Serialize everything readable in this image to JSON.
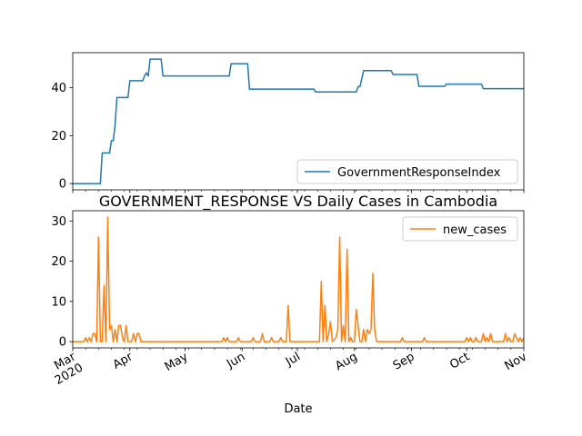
{
  "chart_data": [
    {
      "type": "line",
      "title": "",
      "xlabel": "",
      "ylabel": "",
      "ylim": [
        -2.6,
        54.6
      ],
      "yticks": [
        0,
        20,
        40
      ],
      "legend_position": "lower-right",
      "grid": false,
      "series": [
        {
          "name": "GovernmentResponseIndex",
          "color": "#1f77b4",
          "points": [
            [
              "2020-03-01",
              0
            ],
            [
              "2020-03-16",
              0
            ],
            [
              "2020-03-17",
              12.8
            ],
            [
              "2020-03-21",
              12.8
            ],
            [
              "2020-03-22",
              17.9
            ],
            [
              "2020-03-23",
              17.9
            ],
            [
              "2020-03-24",
              24.4
            ],
            [
              "2020-03-25",
              35.9
            ],
            [
              "2020-03-31",
              35.9
            ],
            [
              "2020-04-01",
              42.9
            ],
            [
              "2020-04-08",
              42.9
            ],
            [
              "2020-04-09",
              44.9
            ],
            [
              "2020-04-10",
              46.2
            ],
            [
              "2020-04-11",
              44.9
            ],
            [
              "2020-04-12",
              51.9
            ],
            [
              "2020-04-18",
              51.9
            ],
            [
              "2020-04-19",
              44.9
            ],
            [
              "2020-05-25",
              44.9
            ],
            [
              "2020-05-26",
              50.0
            ],
            [
              "2020-06-04",
              50.0
            ],
            [
              "2020-06-05",
              39.4
            ],
            [
              "2020-07-10",
              39.4
            ],
            [
              "2020-07-11",
              38.2
            ],
            [
              "2020-08-02",
              38.2
            ],
            [
              "2020-08-03",
              40.4
            ],
            [
              "2020-08-04",
              40.4
            ],
            [
              "2020-08-06",
              47.1
            ],
            [
              "2020-08-21",
              47.1
            ],
            [
              "2020-08-22",
              45.5
            ],
            [
              "2020-09-04",
              45.5
            ],
            [
              "2020-09-05",
              40.6
            ],
            [
              "2020-09-19",
              40.6
            ],
            [
              "2020-09-20",
              41.5
            ],
            [
              "2020-10-09",
              41.5
            ],
            [
              "2020-10-10",
              39.6
            ],
            [
              "2020-11-01",
              39.6
            ]
          ]
        }
      ]
    },
    {
      "type": "line",
      "title": "GOVERNMENT_RESPONSE VS Daily Cases in Cambodia",
      "xlabel": "Date",
      "ylabel": "",
      "ylim": [
        -1.55,
        32.55
      ],
      "yticks": [
        0,
        10,
        20,
        30
      ],
      "legend_position": "upper-right",
      "grid": false,
      "series": [
        {
          "name": "new_cases",
          "color": "#ff7f0e",
          "points": [
            [
              "2020-03-01",
              0
            ],
            [
              "2020-03-07",
              0
            ],
            [
              "2020-03-08",
              1
            ],
            [
              "2020-03-09",
              0
            ],
            [
              "2020-03-10",
              1
            ],
            [
              "2020-03-11",
              0
            ],
            [
              "2020-03-12",
              2
            ],
            [
              "2020-03-13",
              2
            ],
            [
              "2020-03-14",
              0
            ],
            [
              "2020-03-15",
              26
            ],
            [
              "2020-03-16",
              0
            ],
            [
              "2020-03-17",
              0
            ],
            [
              "2020-03-18",
              14
            ],
            [
              "2020-03-19",
              0
            ],
            [
              "2020-03-20",
              31
            ],
            [
              "2020-03-21",
              3
            ],
            [
              "2020-03-22",
              4
            ],
            [
              "2020-03-23",
              0
            ],
            [
              "2020-03-24",
              3
            ],
            [
              "2020-03-25",
              0
            ],
            [
              "2020-03-26",
              4
            ],
            [
              "2020-03-27",
              4
            ],
            [
              "2020-03-28",
              1
            ],
            [
              "2020-03-29",
              0
            ],
            [
              "2020-03-30",
              4
            ],
            [
              "2020-03-31",
              0
            ],
            [
              "2020-04-02",
              0
            ],
            [
              "2020-04-03",
              2
            ],
            [
              "2020-04-04",
              0
            ],
            [
              "2020-04-05",
              2
            ],
            [
              "2020-04-06",
              2
            ],
            [
              "2020-04-07",
              0
            ],
            [
              "2020-05-21",
              0
            ],
            [
              "2020-05-22",
              1
            ],
            [
              "2020-05-23",
              0
            ],
            [
              "2020-05-24",
              1
            ],
            [
              "2020-05-25",
              0
            ],
            [
              "2020-05-29",
              0
            ],
            [
              "2020-05-30",
              1
            ],
            [
              "2020-05-31",
              0
            ],
            [
              "2020-06-06",
              0
            ],
            [
              "2020-06-07",
              1
            ],
            [
              "2020-06-08",
              0
            ],
            [
              "2020-06-11",
              0
            ],
            [
              "2020-06-12",
              2
            ],
            [
              "2020-06-13",
              0
            ],
            [
              "2020-06-16",
              0
            ],
            [
              "2020-06-17",
              1
            ],
            [
              "2020-06-18",
              0
            ],
            [
              "2020-06-21",
              0
            ],
            [
              "2020-06-22",
              1
            ],
            [
              "2020-06-23",
              0
            ],
            [
              "2020-06-25",
              0
            ],
            [
              "2020-06-26",
              9
            ],
            [
              "2020-06-27",
              0
            ],
            [
              "2020-07-13",
              0
            ],
            [
              "2020-07-14",
              15
            ],
            [
              "2020-07-15",
              0
            ],
            [
              "2020-07-16",
              9
            ],
            [
              "2020-07-17",
              0
            ],
            [
              "2020-07-18",
              2
            ],
            [
              "2020-07-19",
              5
            ],
            [
              "2020-07-20",
              0
            ],
            [
              "2020-07-22",
              1
            ],
            [
              "2020-07-23",
              3
            ],
            [
              "2020-07-24",
              26
            ],
            [
              "2020-07-25",
              0
            ],
            [
              "2020-07-26",
              4
            ],
            [
              "2020-07-27",
              0
            ],
            [
              "2020-07-28",
              23
            ],
            [
              "2020-07-29",
              0
            ],
            [
              "2020-07-30",
              1
            ],
            [
              "2020-07-31",
              0
            ],
            [
              "2020-08-01",
              0
            ],
            [
              "2020-08-02",
              8
            ],
            [
              "2020-08-03",
              4
            ],
            [
              "2020-08-04",
              0
            ],
            [
              "2020-08-05",
              0
            ],
            [
              "2020-08-06",
              3
            ],
            [
              "2020-08-07",
              0
            ],
            [
              "2020-08-08",
              3
            ],
            [
              "2020-08-09",
              2
            ],
            [
              "2020-08-10",
              3
            ],
            [
              "2020-08-11",
              17
            ],
            [
              "2020-08-12",
              3
            ],
            [
              "2020-08-13",
              0
            ],
            [
              "2020-08-26",
              0
            ],
            [
              "2020-08-27",
              1
            ],
            [
              "2020-08-28",
              0
            ],
            [
              "2020-09-07",
              0
            ],
            [
              "2020-09-08",
              1
            ],
            [
              "2020-09-09",
              0
            ],
            [
              "2020-09-30",
              0
            ],
            [
              "2020-10-01",
              1
            ],
            [
              "2020-10-02",
              0
            ],
            [
              "2020-10-03",
              1
            ],
            [
              "2020-10-04",
              0
            ],
            [
              "2020-10-05",
              0
            ],
            [
              "2020-10-06",
              1
            ],
            [
              "2020-10-07",
              0
            ],
            [
              "2020-10-09",
              0
            ],
            [
              "2020-10-10",
              2
            ],
            [
              "2020-10-11",
              0
            ],
            [
              "2020-10-12",
              1
            ],
            [
              "2020-10-13",
              0
            ],
            [
              "2020-10-14",
              2
            ],
            [
              "2020-10-15",
              0
            ],
            [
              "2020-10-21",
              0
            ],
            [
              "2020-10-22",
              2
            ],
            [
              "2020-10-23",
              0
            ],
            [
              "2020-10-24",
              1
            ],
            [
              "2020-10-25",
              0
            ],
            [
              "2020-10-26",
              0
            ],
            [
              "2020-10-27",
              2
            ],
            [
              "2020-10-28",
              1
            ],
            [
              "2020-10-29",
              0
            ],
            [
              "2020-10-30",
              1
            ],
            [
              "2020-10-31",
              0
            ],
            [
              "2020-11-01",
              1
            ]
          ]
        }
      ]
    }
  ],
  "x_axis": {
    "xlim": [
      "2020-03-01",
      "2020-11-01"
    ],
    "label": "Date",
    "tick_labels": [
      {
        "date": "2020-03-01",
        "label": "Mar",
        "sublabel": "2020"
      },
      {
        "date": "2020-04-01",
        "label": "Apr"
      },
      {
        "date": "2020-05-01",
        "label": "May"
      },
      {
        "date": "2020-06-01",
        "label": "Jun"
      },
      {
        "date": "2020-07-01",
        "label": "Jul"
      },
      {
        "date": "2020-08-01",
        "label": "Aug"
      },
      {
        "date": "2020-09-01",
        "label": "Sep"
      },
      {
        "date": "2020-10-01",
        "label": "Oct"
      },
      {
        "date": "2020-11-01",
        "label": "Nov"
      }
    ],
    "minor_ticks": "weekly"
  }
}
